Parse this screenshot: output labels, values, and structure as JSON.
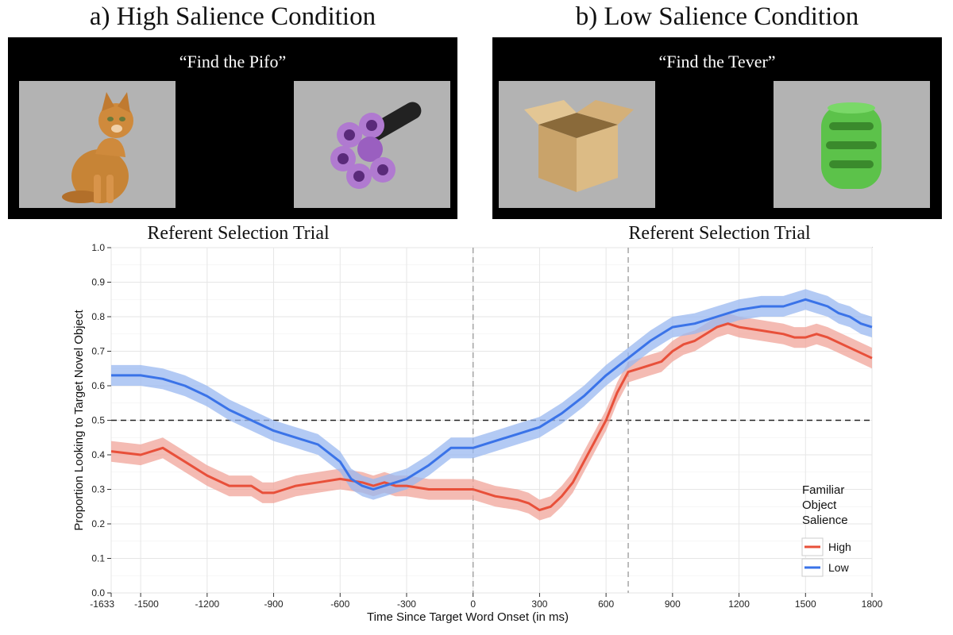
{
  "panels": [
    {
      "title": "a) High Salience Condition",
      "prompt": "“Find the Pifo”",
      "label": "Referent Selection Trial",
      "left_object": "cat",
      "right_object": "purple-foam-toy"
    },
    {
      "title": "b) Low Salience Condition",
      "prompt": "“Find the Tever”",
      "label": "Referent Selection Trial",
      "left_object": "cardboard-box",
      "right_object": "green-slotted-toy"
    }
  ],
  "chart_data": {
    "type": "line",
    "xlabel": "Time Since Target Word Onset (in ms)",
    "ylabel": "Proportion Looking to Target Novel Object",
    "xlim": [
      -1633,
      1800
    ],
    "ylim": [
      0,
      1
    ],
    "x_ticks": [
      -1633,
      -1500,
      -1200,
      -900,
      -600,
      -300,
      0,
      300,
      600,
      900,
      1200,
      1500,
      1800
    ],
    "x_tick_labels": [
      "-1633",
      "-1500",
      "-1200",
      "-900",
      "-600",
      "-300",
      "0",
      "300",
      "600",
      "900",
      "1200",
      "1500",
      "1800"
    ],
    "y_ticks": [
      0.0,
      0.1,
      0.2,
      0.3,
      0.4,
      0.5,
      0.6,
      0.7,
      0.8,
      0.9,
      1.0
    ],
    "y_tick_labels": [
      "0.0",
      "0.1",
      "0.2",
      "0.3",
      "0.4",
      "0.5",
      "0.6",
      "0.7",
      "0.8",
      "0.9",
      "1.0"
    ],
    "reference_lines": {
      "horizontal": 0.5,
      "vertical": [
        0,
        700
      ]
    },
    "grid": true,
    "legend": {
      "title_lines": [
        "Familiar",
        "Object",
        "Salience"
      ],
      "position": "bottom-right"
    },
    "ribbon_halfwidth": 0.03,
    "series": [
      {
        "name": "High",
        "color": "#e8503a",
        "band_color": "#f0a49a",
        "x": [
          -1633,
          -1500,
          -1400,
          -1300,
          -1200,
          -1100,
          -1000,
          -950,
          -900,
          -850,
          -800,
          -700,
          -600,
          -500,
          -450,
          -400,
          -350,
          -300,
          -200,
          -100,
          0,
          100,
          200,
          250,
          300,
          350,
          400,
          450,
          500,
          550,
          600,
          650,
          700,
          750,
          800,
          850,
          900,
          950,
          1000,
          1100,
          1150,
          1200,
          1300,
          1400,
          1450,
          1500,
          1550,
          1600,
          1700,
          1800
        ],
        "y": [
          0.41,
          0.4,
          0.42,
          0.38,
          0.34,
          0.31,
          0.31,
          0.29,
          0.29,
          0.3,
          0.31,
          0.32,
          0.33,
          0.32,
          0.31,
          0.32,
          0.31,
          0.31,
          0.3,
          0.3,
          0.3,
          0.28,
          0.27,
          0.26,
          0.24,
          0.25,
          0.28,
          0.32,
          0.38,
          0.44,
          0.5,
          0.58,
          0.64,
          0.65,
          0.66,
          0.67,
          0.7,
          0.72,
          0.73,
          0.77,
          0.78,
          0.77,
          0.76,
          0.75,
          0.74,
          0.74,
          0.75,
          0.74,
          0.71,
          0.68
        ]
      },
      {
        "name": "Low",
        "color": "#3a73e8",
        "band_color": "#9ab8f0",
        "x": [
          -1633,
          -1500,
          -1400,
          -1300,
          -1200,
          -1100,
          -1000,
          -900,
          -800,
          -700,
          -600,
          -550,
          -500,
          -450,
          -400,
          -350,
          -300,
          -200,
          -100,
          0,
          100,
          200,
          300,
          400,
          500,
          600,
          700,
          800,
          900,
          1000,
          1100,
          1200,
          1300,
          1400,
          1500,
          1550,
          1600,
          1650,
          1700,
          1750,
          1800
        ],
        "y": [
          0.63,
          0.63,
          0.62,
          0.6,
          0.57,
          0.53,
          0.5,
          0.47,
          0.45,
          0.43,
          0.38,
          0.33,
          0.31,
          0.3,
          0.31,
          0.32,
          0.33,
          0.37,
          0.42,
          0.42,
          0.44,
          0.46,
          0.48,
          0.52,
          0.57,
          0.63,
          0.68,
          0.73,
          0.77,
          0.78,
          0.8,
          0.82,
          0.83,
          0.83,
          0.85,
          0.84,
          0.83,
          0.81,
          0.8,
          0.78,
          0.77
        ]
      }
    ]
  }
}
